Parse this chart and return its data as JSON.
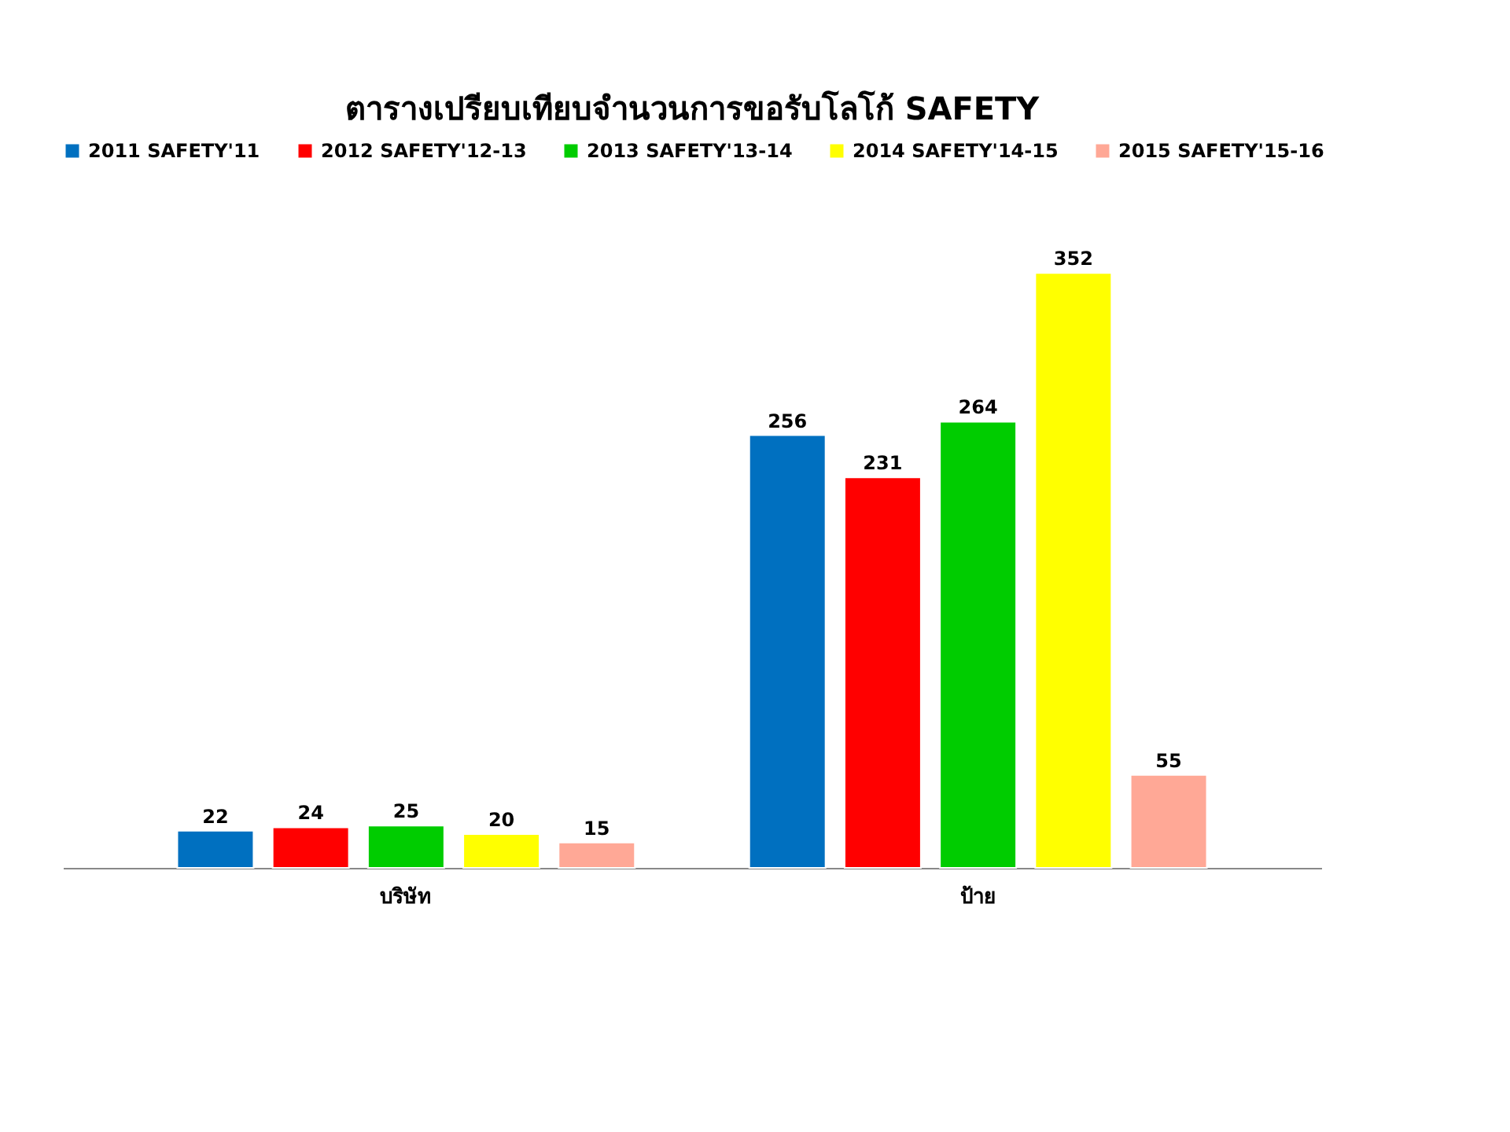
{
  "chart_data": {
    "type": "bar",
    "title": "ตารางเปรียบเทียบจำนวนการขอรับโลโก้ SAFETY",
    "categories": [
      "บริษัท",
      "ป้าย"
    ],
    "series": [
      {
        "name": "2011 SAFETY'11",
        "color": "#0070c0",
        "values": [
          22,
          256
        ]
      },
      {
        "name": "2012 SAFETY'12-13",
        "color": "#ff0000",
        "values": [
          24,
          231
        ]
      },
      {
        "name": "2013 SAFETY'13-14",
        "color": "#00cc00",
        "values": [
          25,
          264
        ]
      },
      {
        "name": "2014 SAFETY'14-15",
        "color": "#ffff00",
        "values": [
          20,
          352
        ]
      },
      {
        "name": "2015 SAFETY'15-16",
        "color": "#ffa896",
        "values": [
          15,
          55
        ]
      }
    ],
    "data_labels": true,
    "legend": "top",
    "grid": false
  }
}
